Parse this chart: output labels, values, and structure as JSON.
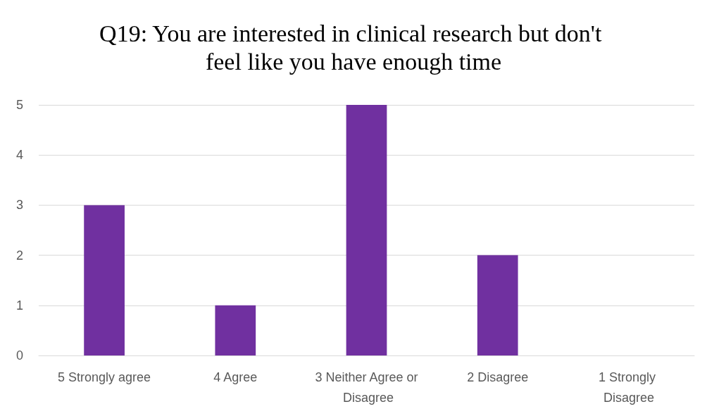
{
  "chart_data": {
    "type": "bar",
    "title": "Q19: You are interested in clinical research but don't feel like you have enough time",
    "categories": [
      "5 Strongly agree",
      "4 Agree",
      "3 Neither Agree or Disagree",
      "2 Disagree",
      "1 Strongly Disagree"
    ],
    "values": [
      3,
      1,
      5,
      2,
      0
    ],
    "color": "#7030a0",
    "ylim": [
      0,
      5
    ],
    "yticks": [
      0,
      1,
      2,
      3,
      4,
      5
    ],
    "grid": "y"
  }
}
